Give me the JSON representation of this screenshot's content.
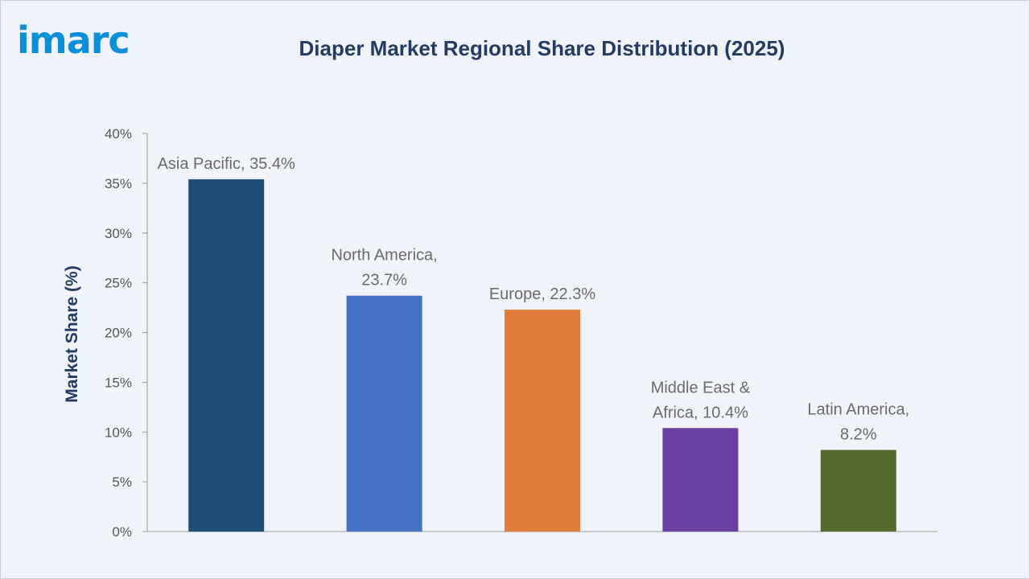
{
  "logo": {
    "text": "imarc"
  },
  "colors": {
    "background": "#f0f3f9",
    "title": "#243b63",
    "logo": "#0a8fd8",
    "axis": "#9a9a9a"
  },
  "chart_data": {
    "type": "bar",
    "title": "Diaper Market Regional Share Distribution (2025)",
    "xlabel": "",
    "ylabel": "Market Share (%)",
    "ylim": [
      0,
      40
    ],
    "yticks": [
      0,
      5,
      10,
      15,
      20,
      25,
      30,
      35,
      40
    ],
    "ytick_labels": [
      "0%",
      "5%",
      "10%",
      "15%",
      "20%",
      "25%",
      "30%",
      "35%",
      "40%"
    ],
    "grid": false,
    "categories": [
      "Asia Pacific",
      "North America",
      "Europe",
      "Middle East & Africa",
      "Latin America"
    ],
    "values": [
      35.4,
      23.7,
      22.3,
      10.4,
      8.2
    ],
    "colors": [
      "#1f4e79",
      "#4472c4",
      "#e07b39",
      "#6b3fa0",
      "#556b2f"
    ],
    "data_labels": [
      [
        "Asia Pacific, 35.4%"
      ],
      [
        "North America,",
        "23.7%"
      ],
      [
        "Europe, 22.3%"
      ],
      [
        "Middle East &",
        "Africa, 10.4%"
      ],
      [
        "Latin America,",
        "8.2%"
      ]
    ]
  }
}
